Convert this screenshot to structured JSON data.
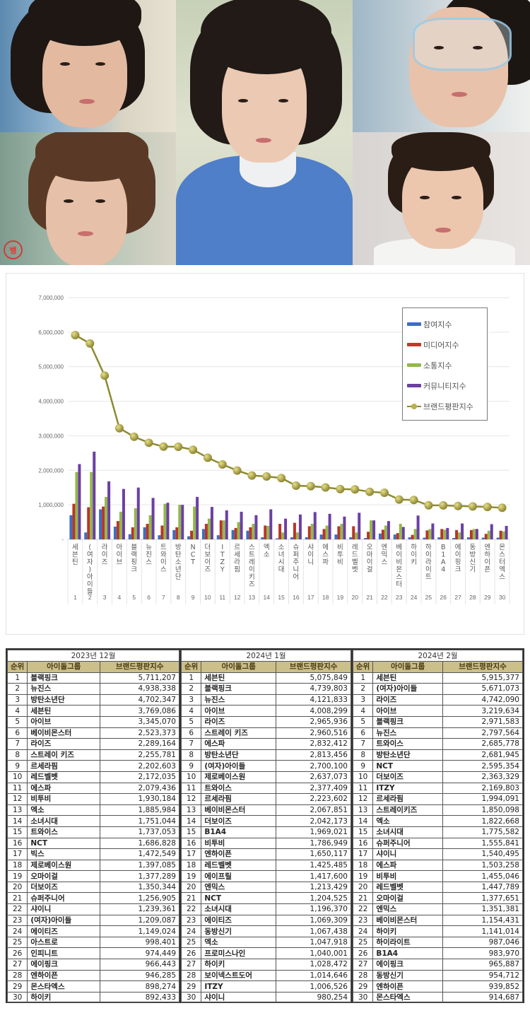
{
  "collage": {
    "photos": [
      {
        "position": "top-left",
        "description": "portrait with dark bangs"
      },
      {
        "position": "bottom-left",
        "description": "portrait with brown hair"
      },
      {
        "position": "center",
        "description": "portrait in blue sweater"
      },
      {
        "position": "top-right",
        "description": "portrait with clear goggles"
      },
      {
        "position": "bottom-right",
        "description": "portrait in white shirt"
      }
    ],
    "watermark": "뱅"
  },
  "legend": {
    "items": [
      {
        "label": "참여지수",
        "color": "#3b6fc2"
      },
      {
        "label": "미디어지수",
        "color": "#c0392b"
      },
      {
        "label": "소통지수",
        "color": "#93b84a"
      },
      {
        "label": "커뮤니티지수",
        "color": "#6b3fa3"
      },
      {
        "label": "브랜드평판지수",
        "color": "#b3ab46"
      }
    ]
  },
  "chart_data": {
    "type": "bar",
    "title": "",
    "xlabel": "",
    "ylabel": "",
    "ylim": [
      0,
      7000000
    ],
    "yticks": [
      "-",
      "1,000,000",
      "2,000,000",
      "3,000,000",
      "4,000,000",
      "5,000,000",
      "6,000,000",
      "7,000,000"
    ],
    "grid": true,
    "legend_position": "upper-right",
    "categories": [
      "세븐틴",
      "(여자)아이들",
      "라이즈",
      "아이브",
      "블랙핑크",
      "뉴진스",
      "트와이스",
      "방탄소년단",
      "NCT",
      "더보이즈",
      "ITZY",
      "르세라핌",
      "스트레이키즈",
      "엑소",
      "소녀시대",
      "슈퍼주니어",
      "샤이니",
      "에스파",
      "비투비",
      "레드벨벳",
      "오마이걸",
      "엔믹스",
      "베이비몬스터",
      "하이키",
      "하이라이트",
      "B1A4",
      "에이핑크",
      "동방신기",
      "엔하이픈",
      "몬스터엑스"
    ],
    "category_numbers": [
      1,
      2,
      3,
      4,
      5,
      6,
      7,
      8,
      9,
      10,
      11,
      12,
      13,
      14,
      15,
      16,
      17,
      18,
      19,
      20,
      21,
      22,
      23,
      24,
      25,
      26,
      27,
      28,
      29,
      30
    ],
    "series": [
      {
        "name": "참여지수",
        "type": "bar",
        "values": [
          700000,
          200000,
          870000,
          370000,
          150000,
          350000,
          120000,
          270000,
          90000,
          300000,
          120000,
          270000,
          250000,
          60000,
          30000,
          60000,
          60000,
          140000,
          140000,
          60000,
          40000,
          170000,
          140000,
          60000,
          50000,
          60000,
          40000,
          60000,
          50000,
          50000
        ]
      },
      {
        "name": "미디어지수",
        "type": "bar",
        "values": [
          1030000,
          930000,
          950000,
          530000,
          350000,
          450000,
          400000,
          350000,
          250000,
          450000,
          550000,
          330000,
          350000,
          400000,
          450000,
          480000,
          380000,
          300000,
          380000,
          380000,
          220000,
          280000,
          180000,
          130000,
          260000,
          300000,
          270000,
          270000,
          160000,
          250000
        ]
      },
      {
        "name": "소통지수",
        "type": "bar",
        "values": [
          1950000,
          1950000,
          1230000,
          800000,
          900000,
          700000,
          1030000,
          1000000,
          950000,
          600000,
          550000,
          500000,
          450000,
          390000,
          200000,
          200000,
          450000,
          400000,
          450000,
          200000,
          550000,
          400000,
          450000,
          300000,
          300000,
          280000,
          200000,
          300000,
          250000,
          230000
        ]
      },
      {
        "name": "커뮤니티지수",
        "type": "bar",
        "values": [
          2180000,
          2540000,
          1680000,
          1460000,
          1500000,
          1200000,
          1060000,
          1000000,
          1230000,
          940000,
          840000,
          800000,
          700000,
          870000,
          600000,
          720000,
          790000,
          740000,
          660000,
          770000,
          550000,
          530000,
          360000,
          690000,
          460000,
          330000,
          460000,
          300000,
          440000,
          390000
        ]
      },
      {
        "name": "브랜드평판지수",
        "type": "line",
        "values": [
          5915377,
          5671073,
          4742090,
          3219634,
          2971583,
          2797564,
          2685778,
          2681945,
          2595354,
          2363329,
          2169803,
          1994091,
          1850098,
          1822668,
          1775582,
          1555841,
          1540495,
          1503258,
          1455046,
          1447789,
          1377651,
          1351381,
          1154431,
          1141014,
          987046,
          983970,
          965887,
          954712,
          939852,
          914687
        ]
      }
    ]
  },
  "tables": [
    {
      "month": "2023년 12월",
      "headers": [
        "순위",
        "아이돌그룹",
        "브랜드평판지수"
      ],
      "rows": [
        [
          "1",
          "블랙핑크",
          "5,711,207"
        ],
        [
          "2",
          "뉴진스",
          "4,938,338"
        ],
        [
          "3",
          "방탄소년단",
          "4,702,347"
        ],
        [
          "4",
          "세븐틴",
          "3,769,086"
        ],
        [
          "5",
          "아이브",
          "3,345,070"
        ],
        [
          "6",
          "베이비몬스터",
          "2,523,373"
        ],
        [
          "7",
          "라이즈",
          "2,289,164"
        ],
        [
          "8",
          "스트레이 키즈",
          "2,255,781"
        ],
        [
          "9",
          "르세라핌",
          "2,202,603"
        ],
        [
          "10",
          "레드벨벳",
          "2,172,035"
        ],
        [
          "11",
          "에스파",
          "2,079,436"
        ],
        [
          "12",
          "비투비",
          "1,930,184"
        ],
        [
          "13",
          "엑소",
          "1,885,984"
        ],
        [
          "14",
          "소녀시대",
          "1,751,044"
        ],
        [
          "15",
          "트와이스",
          "1,737,053"
        ],
        [
          "16",
          "NCT",
          "1,686,828"
        ],
        [
          "17",
          "빅스",
          "1,472,549"
        ],
        [
          "18",
          "제로베이스원",
          "1,397,085"
        ],
        [
          "19",
          "오마이걸",
          "1,377,289"
        ],
        [
          "20",
          "더보이즈",
          "1,350,344"
        ],
        [
          "21",
          "슈퍼주니어",
          "1,256,905"
        ],
        [
          "22",
          "샤이니",
          "1,239,361"
        ],
        [
          "23",
          "(여자)아이들",
          "1,209,087"
        ],
        [
          "24",
          "에이티즈",
          "1,149,024"
        ],
        [
          "25",
          "아스트로",
          "998,401"
        ],
        [
          "26",
          "인피니트",
          "974,449"
        ],
        [
          "27",
          "에이핑크",
          "966,443"
        ],
        [
          "28",
          "엔하이픈",
          "946,285"
        ],
        [
          "29",
          "몬스타엑스",
          "898,274"
        ],
        [
          "30",
          "하이키",
          "892,433"
        ]
      ]
    },
    {
      "month": "2024년 1월",
      "headers": [
        "순위",
        "아이돌그룹",
        "브랜드평판지수"
      ],
      "rows": [
        [
          "1",
          "세븐틴",
          "5,075,849"
        ],
        [
          "2",
          "블랙핑크",
          "4,739,803"
        ],
        [
          "3",
          "뉴진스",
          "4,121,833"
        ],
        [
          "4",
          "아이브",
          "4,008,299"
        ],
        [
          "5",
          "라이즈",
          "2,965,936"
        ],
        [
          "6",
          "스트레이 키즈",
          "2,960,516"
        ],
        [
          "7",
          "에스파",
          "2,832,412"
        ],
        [
          "8",
          "방탄소년단",
          "2,813,456"
        ],
        [
          "9",
          "(여자)아이들",
          "2,700,100"
        ],
        [
          "10",
          "제로베이스원",
          "2,637,073"
        ],
        [
          "11",
          "트와이스",
          "2,377,409"
        ],
        [
          "12",
          "르세라핌",
          "2,223,602"
        ],
        [
          "13",
          "베이비몬스터",
          "2,067,851"
        ],
        [
          "14",
          "더보이즈",
          "2,042,173"
        ],
        [
          "15",
          "B1A4",
          "1,969,021"
        ],
        [
          "16",
          "비투비",
          "1,786,949"
        ],
        [
          "17",
          "엔하이픈",
          "1,650,117"
        ],
        [
          "18",
          "레드벨벳",
          "1,425,485"
        ],
        [
          "19",
          "에이프릴",
          "1,417,600"
        ],
        [
          "20",
          "엔믹스",
          "1,213,429"
        ],
        [
          "21",
          "NCT",
          "1,204,525"
        ],
        [
          "22",
          "소녀시대",
          "1,196,370"
        ],
        [
          "23",
          "에이티즈",
          "1,069,309"
        ],
        [
          "24",
          "동방신기",
          "1,067,438"
        ],
        [
          "25",
          "엑소",
          "1,047,918"
        ],
        [
          "26",
          "프로미스나인",
          "1,040,001"
        ],
        [
          "27",
          "하이키",
          "1,028,472"
        ],
        [
          "28",
          "보이넥스트도어",
          "1,014,646"
        ],
        [
          "29",
          "ITZY",
          "1,006,526"
        ],
        [
          "30",
          "샤이니",
          "980,254"
        ]
      ]
    },
    {
      "month": "2024년 2월",
      "headers": [
        "순위",
        "아이돌그룹",
        "브랜드평판지수"
      ],
      "rows": [
        [
          "1",
          "세븐틴",
          "5,915,377"
        ],
        [
          "2",
          "(여자)아이들",
          "5,671,073"
        ],
        [
          "3",
          "라이즈",
          "4,742,090"
        ],
        [
          "4",
          "아이브",
          "3,219,634"
        ],
        [
          "5",
          "블랙핑크",
          "2,971,583"
        ],
        [
          "6",
          "뉴진스",
          "2,797,564"
        ],
        [
          "7",
          "트와이스",
          "2,685,778"
        ],
        [
          "8",
          "방탄소년단",
          "2,681,945"
        ],
        [
          "9",
          "NCT",
          "2,595,354"
        ],
        [
          "10",
          "더보이즈",
          "2,363,329"
        ],
        [
          "11",
          "ITZY",
          "2,169,803"
        ],
        [
          "12",
          "르세라핌",
          "1,994,091"
        ],
        [
          "13",
          "스트레이키즈",
          "1,850,098"
        ],
        [
          "14",
          "엑소",
          "1,822,668"
        ],
        [
          "15",
          "소녀시대",
          "1,775,582"
        ],
        [
          "16",
          "슈퍼주니어",
          "1,555,841"
        ],
        [
          "17",
          "샤이니",
          "1,540,495"
        ],
        [
          "18",
          "에스파",
          "1,503,258"
        ],
        [
          "19",
          "비투비",
          "1,455,046"
        ],
        [
          "20",
          "레드벨벳",
          "1,447,789"
        ],
        [
          "21",
          "오마이걸",
          "1,377,651"
        ],
        [
          "22",
          "엔믹스",
          "1,351,381"
        ],
        [
          "23",
          "베이비몬스터",
          "1,154,431"
        ],
        [
          "24",
          "하이키",
          "1,141,014"
        ],
        [
          "25",
          "하이라이트",
          "987,046"
        ],
        [
          "26",
          "B1A4",
          "983,970"
        ],
        [
          "27",
          "에이핑크",
          "965,887"
        ],
        [
          "28",
          "동방신기",
          "954,712"
        ],
        [
          "29",
          "엔하이픈",
          "939,852"
        ],
        [
          "30",
          "몬스타엑스",
          "914,687"
        ]
      ]
    }
  ]
}
